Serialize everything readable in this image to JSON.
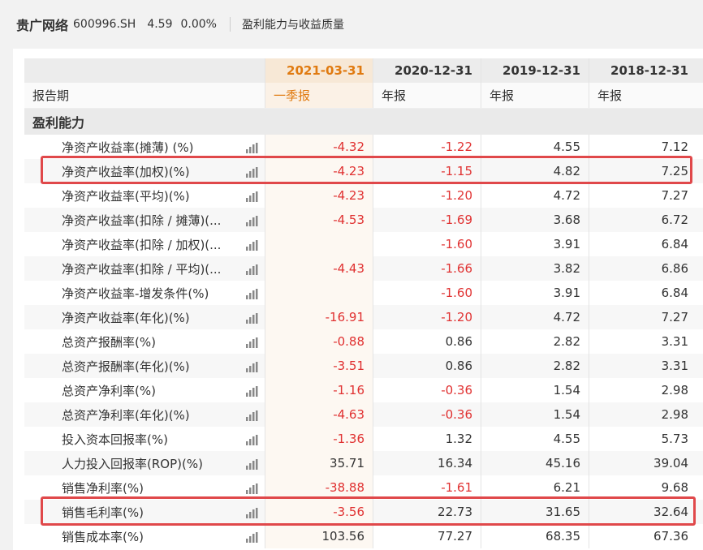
{
  "header": {
    "stock_name": "贵广网络",
    "stock_code": "600996.SH",
    "price": "4.59",
    "change": "0.00%",
    "section": "盈利能力与收益质量"
  },
  "table": {
    "dates": [
      "2021-03-31",
      "2020-12-31",
      "2019-12-31",
      "2018-12-31"
    ],
    "period_label": "报告期",
    "periods": [
      "一季报",
      "年报",
      "年报",
      "年报"
    ],
    "group_label": "盈利能力",
    "rows": [
      {
        "label": "净资产收益率(摊薄) (%)",
        "values": [
          "-4.32",
          "-1.22",
          "4.55",
          "7.12"
        ]
      },
      {
        "label": "净资产收益率(加权)(%)",
        "values": [
          "-4.23",
          "-1.15",
          "4.82",
          "7.25"
        ]
      },
      {
        "label": "净资产收益率(平均)(%)",
        "values": [
          "-4.23",
          "-1.20",
          "4.72",
          "7.27"
        ]
      },
      {
        "label": "净资产收益率(扣除 / 摊薄)(...",
        "values": [
          "-4.53",
          "-1.69",
          "3.68",
          "6.72"
        ]
      },
      {
        "label": "净资产收益率(扣除 / 加权)(...",
        "values": [
          "",
          "-1.60",
          "3.91",
          "6.84"
        ]
      },
      {
        "label": "净资产收益率(扣除 / 平均)(...",
        "values": [
          "-4.43",
          "-1.66",
          "3.82",
          "6.86"
        ]
      },
      {
        "label": "净资产收益率-增发条件(%)",
        "values": [
          "",
          "-1.60",
          "3.91",
          "6.84"
        ]
      },
      {
        "label": "净资产收益率(年化)(%)",
        "values": [
          "-16.91",
          "-1.20",
          "4.72",
          "7.27"
        ]
      },
      {
        "label": "总资产报酬率(%)",
        "values": [
          "-0.88",
          "0.86",
          "2.82",
          "3.31"
        ]
      },
      {
        "label": "总资产报酬率(年化)(%)",
        "values": [
          "-3.51",
          "0.86",
          "2.82",
          "3.31"
        ]
      },
      {
        "label": "总资产净利率(%)",
        "values": [
          "-1.16",
          "-0.36",
          "1.54",
          "2.98"
        ]
      },
      {
        "label": "总资产净利率(年化)(%)",
        "values": [
          "-4.63",
          "-0.36",
          "1.54",
          "2.98"
        ]
      },
      {
        "label": "投入资本回报率(%)",
        "values": [
          "-1.36",
          "1.32",
          "4.55",
          "5.73"
        ]
      },
      {
        "label": "人力投入回报率(ROP)(%)",
        "values": [
          "35.71",
          "16.34",
          "45.16",
          "39.04"
        ]
      },
      {
        "label": "销售净利率(%)",
        "values": [
          "-38.88",
          "-1.61",
          "6.21",
          "9.68"
        ]
      },
      {
        "label": "销售毛利率(%)",
        "values": [
          "-3.56",
          "22.73",
          "31.65",
          "32.64"
        ]
      },
      {
        "label": "销售成本率(%)",
        "values": [
          "103.56",
          "77.27",
          "68.35",
          "67.36"
        ]
      }
    ]
  },
  "colors": {
    "accent": "#e07a10",
    "negative": "#e03030",
    "highlight": "#e0484a"
  },
  "icons": {
    "row_chart": "bar-chart-icon"
  }
}
